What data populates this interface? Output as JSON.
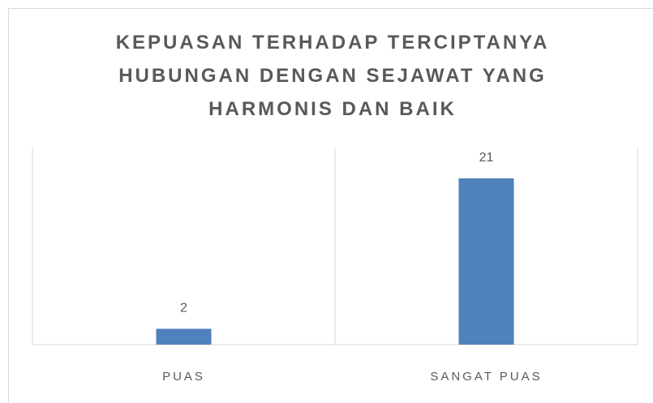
{
  "chart_data": {
    "type": "bar",
    "title": "KEPUASAN TERHADAP TERCIPTANYA HUBUNGAN DENGAN SEJAWAT YANG HARMONIS DAN BAIK",
    "categories": [
      "PUAS",
      "SANGAT PUAS"
    ],
    "values": [
      2,
      21
    ],
    "color": "#4f81bd"
  }
}
